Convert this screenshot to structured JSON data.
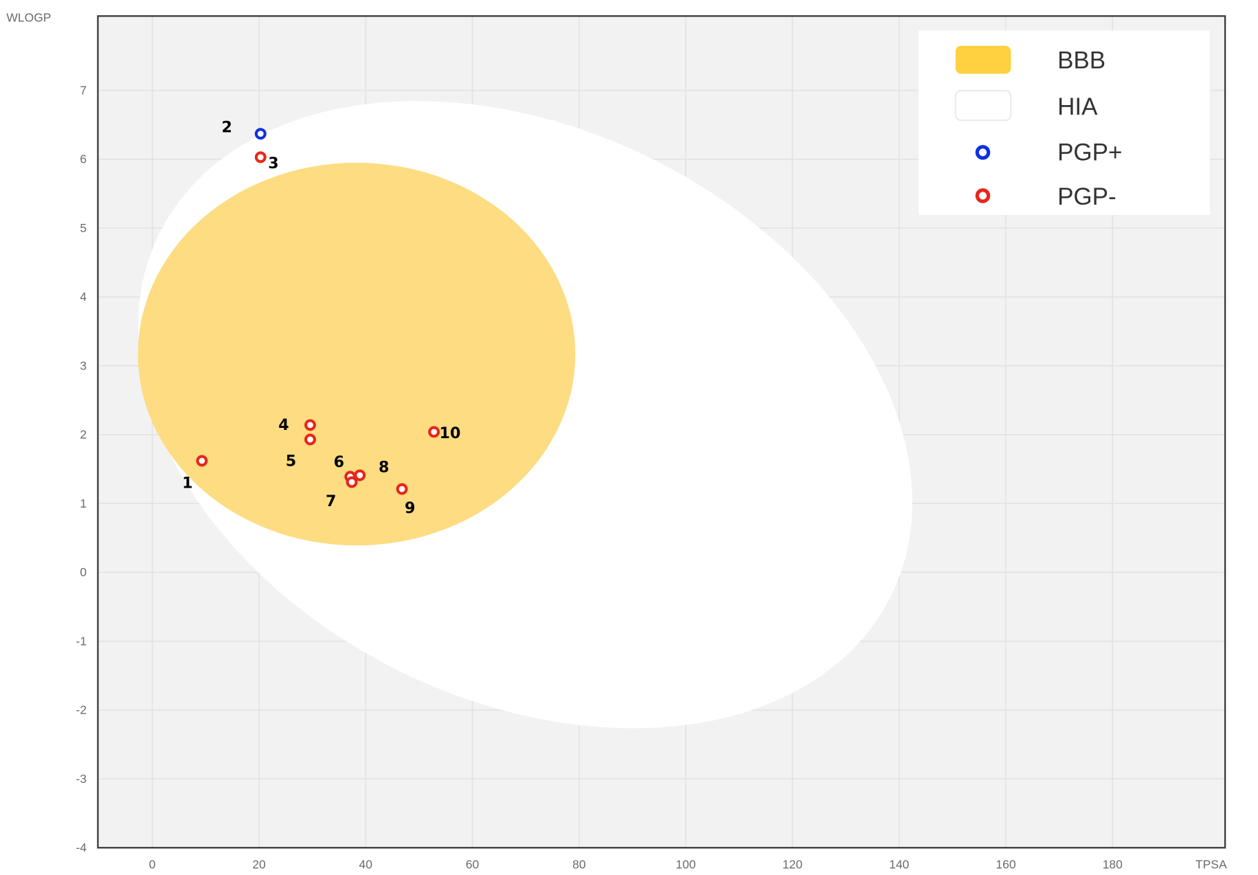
{
  "chart_data": {
    "type": "scatter",
    "title": "",
    "xlabel": "TPSA",
    "ylabel": "WLOGP",
    "xlim": [
      -10.2,
      201.1
    ],
    "ylim": [
      -4.0,
      8.08
    ],
    "grid": true,
    "x_ticks": [
      0,
      20,
      40,
      60,
      80,
      100,
      120,
      140,
      160,
      180
    ],
    "y_ticks": [
      -4,
      -3,
      -2,
      -1,
      0,
      1,
      2,
      3,
      4,
      5,
      6,
      7
    ],
    "legend_position": "top-right",
    "legend": [
      {
        "label": "BBB",
        "kind": "region"
      },
      {
        "label": "HIA",
        "kind": "region"
      },
      {
        "label": "PGP+",
        "kind": "marker"
      },
      {
        "label": "PGP-",
        "kind": "marker"
      }
    ],
    "regions": {
      "HIA": {
        "center": [
          69.9,
          2.29
        ],
        "axis1": [
          68.6,
          -2.63
        ],
        "axis2": [
          -23.7,
          -3.72
        ]
      },
      "BBB": {
        "center": [
          38.3,
          3.17
        ],
        "axis1": [
          41.0,
          0
        ],
        "axis2": [
          0,
          2.78
        ]
      }
    },
    "series": [
      {
        "name": "PGP+",
        "points": [
          {
            "label": "2",
            "x": 20.3,
            "y": 6.37
          }
        ]
      },
      {
        "name": "PGP-",
        "points": [
          {
            "label": "1",
            "x": 9.3,
            "y": 1.62
          },
          {
            "label": "3",
            "x": 20.3,
            "y": 6.03
          },
          {
            "label": "4",
            "x": 29.6,
            "y": 2.14
          },
          {
            "label": "5",
            "x": 29.6,
            "y": 1.93
          },
          {
            "label": "6",
            "x": 37.1,
            "y": 1.39
          },
          {
            "label": "7",
            "x": 37.4,
            "y": 1.31
          },
          {
            "label": "8",
            "x": 38.9,
            "y": 1.41
          },
          {
            "label": "9",
            "x": 46.8,
            "y": 1.21
          },
          {
            "label": "10",
            "x": 52.8,
            "y": 2.04
          }
        ]
      }
    ],
    "colors": {
      "background": "#f2f2f2",
      "hia": "#ffffff",
      "bbb": "#fddc82",
      "bbb_swatch": "#ffd040",
      "pgp_plus": "#1030e0",
      "pgp_minus": "#e8261a",
      "grid": "#e3e3e3",
      "frame": "#3a3a3a"
    }
  }
}
